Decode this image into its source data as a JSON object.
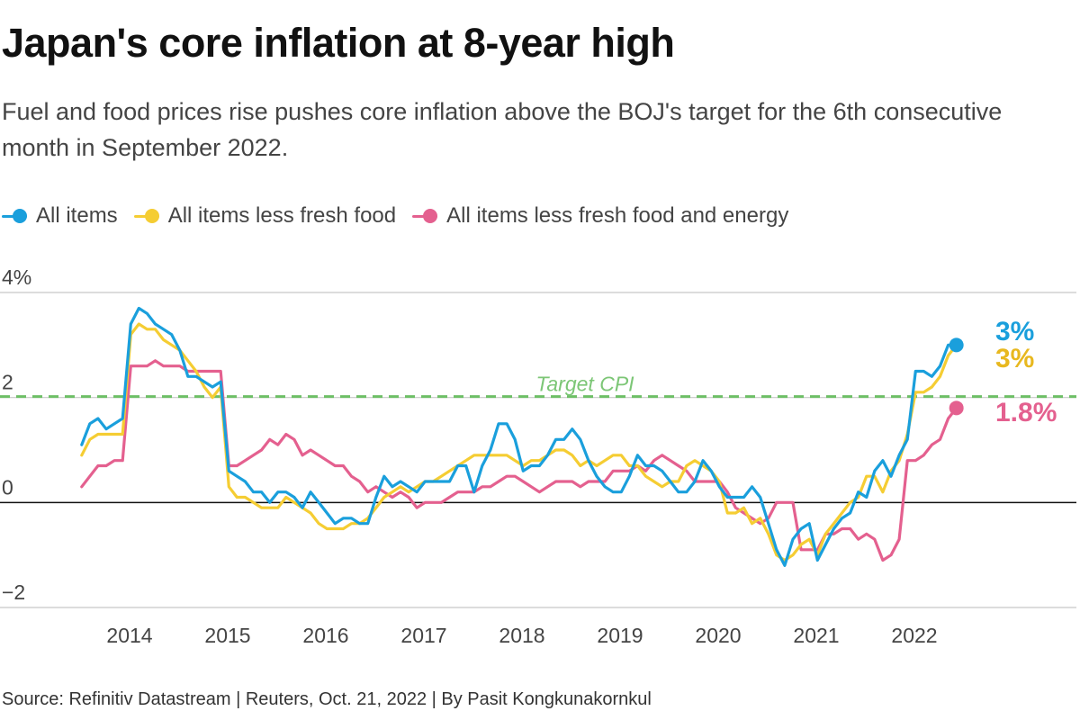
{
  "title": "Japan's core inflation at 8-year high",
  "subtitle": "Fuel and food prices rise pushes core inflation above the BOJ's target for the 6th consecutive month in September 2022.",
  "source": "Source: Refinitiv Datastream | Reuters, Oct. 21, 2022 | By Pasit Kongkunakornkul",
  "legend": [
    {
      "label": "All items",
      "color": "#1a9fdc"
    },
    {
      "label": "All items less fresh food",
      "color": "#f5cd33"
    },
    {
      "label": "All items less fresh food and energy",
      "color": "#e4608f"
    }
  ],
  "chart_data": {
    "type": "line",
    "title": "Japan's core inflation at 8-year high",
    "subtitle": "Fuel and food prices rise pushes core inflation above the BOJ's target for the 6th consecutive month in September 2022.",
    "xlabel": "",
    "ylabel": "",
    "ylim": [
      -2,
      4
    ],
    "y_ticks": [
      {
        "value": 4,
        "label": "4%"
      },
      {
        "value": 2,
        "label": "2"
      },
      {
        "value": 0,
        "label": "0"
      },
      {
        "value": -2,
        "label": "−2"
      }
    ],
    "x_ticks": [
      "2014",
      "2015",
      "2016",
      "2017",
      "2018",
      "2019",
      "2020",
      "2021",
      "2022"
    ],
    "x_start": "2013-10",
    "x_end": "2022-09",
    "grid": "horizontal",
    "legend_position": "top-left",
    "reference_line": {
      "label": "Target CPI",
      "value": 2,
      "color": "#6dbf66"
    },
    "end_labels": [
      {
        "series": "All items",
        "text": "3%"
      },
      {
        "series": "All items less fresh food",
        "text": "3%"
      },
      {
        "series": "All items less fresh food and energy",
        "text": "1.8%"
      }
    ],
    "series": [
      {
        "name": "All items",
        "color": "#1a9fdc",
        "values": [
          1.1,
          1.5,
          1.6,
          1.4,
          1.5,
          1.6,
          3.4,
          3.7,
          3.6,
          3.4,
          3.3,
          3.2,
          2.9,
          2.4,
          2.4,
          2.3,
          2.2,
          2.3,
          0.6,
          0.5,
          0.4,
          0.2,
          0.2,
          0.0,
          0.2,
          0.2,
          0.1,
          -0.1,
          0.2,
          0.0,
          -0.2,
          -0.4,
          -0.3,
          -0.3,
          -0.4,
          -0.4,
          0.1,
          0.5,
          0.3,
          0.4,
          0.3,
          0.2,
          0.4,
          0.4,
          0.4,
          0.4,
          0.7,
          0.7,
          0.2,
          0.7,
          1.0,
          1.5,
          1.5,
          1.2,
          0.6,
          0.7,
          0.7,
          0.9,
          1.2,
          1.2,
          1.4,
          1.2,
          0.8,
          0.5,
          0.3,
          0.2,
          0.2,
          0.5,
          0.9,
          0.7,
          0.7,
          0.6,
          0.4,
          0.2,
          0.2,
          0.4,
          0.8,
          0.6,
          0.3,
          0.1,
          0.1,
          0.1,
          0.3,
          0.1,
          -0.4,
          -0.9,
          -1.2,
          -0.7,
          -0.5,
          -0.4,
          -1.1,
          -0.8,
          -0.5,
          -0.3,
          -0.2,
          0.2,
          0.1,
          0.6,
          0.8,
          0.5,
          0.9,
          1.2,
          2.5,
          2.5,
          2.4,
          2.6,
          3.0,
          3.0
        ]
      },
      {
        "name": "All items less fresh food",
        "color": "#f5cd33",
        "values": [
          0.9,
          1.2,
          1.3,
          1.3,
          1.3,
          1.3,
          3.2,
          3.4,
          3.3,
          3.3,
          3.1,
          3.0,
          2.9,
          2.7,
          2.5,
          2.2,
          2.0,
          2.2,
          0.3,
          0.1,
          0.1,
          0.0,
          -0.1,
          -0.1,
          -0.1,
          0.1,
          0.0,
          -0.1,
          -0.2,
          -0.4,
          -0.5,
          -0.5,
          -0.5,
          -0.4,
          -0.4,
          -0.3,
          -0.1,
          0.1,
          0.2,
          0.3,
          0.2,
          0.3,
          0.4,
          0.4,
          0.5,
          0.6,
          0.7,
          0.8,
          0.9,
          0.9,
          0.9,
          0.9,
          0.9,
          0.8,
          0.7,
          0.8,
          0.8,
          0.9,
          1.0,
          1.0,
          0.9,
          0.7,
          0.8,
          0.7,
          0.8,
          0.9,
          0.9,
          0.7,
          0.7,
          0.5,
          0.4,
          0.3,
          0.4,
          0.4,
          0.7,
          0.8,
          0.7,
          0.6,
          0.4,
          -0.2,
          -0.2,
          -0.1,
          -0.4,
          -0.3,
          -0.6,
          -1.0,
          -1.1,
          -1.0,
          -0.8,
          -0.7,
          -1.0,
          -0.6,
          -0.4,
          -0.2,
          0.0,
          0.1,
          0.5,
          0.5,
          0.2,
          0.6,
          0.8,
          1.3,
          2.1,
          2.1,
          2.2,
          2.4,
          2.8,
          3.0
        ]
      },
      {
        "name": "All items less fresh food and energy",
        "color": "#e4608f",
        "values": [
          0.3,
          0.5,
          0.7,
          0.7,
          0.8,
          0.8,
          2.6,
          2.6,
          2.6,
          2.7,
          2.6,
          2.6,
          2.6,
          2.5,
          2.5,
          2.5,
          2.5,
          2.5,
          0.7,
          0.7,
          0.8,
          0.9,
          1.0,
          1.2,
          1.1,
          1.3,
          1.2,
          0.9,
          1.0,
          0.9,
          0.8,
          0.7,
          0.7,
          0.5,
          0.4,
          0.2,
          0.3,
          0.2,
          0.1,
          0.2,
          0.1,
          -0.1,
          0.0,
          0.0,
          0.0,
          0.1,
          0.2,
          0.2,
          0.2,
          0.3,
          0.3,
          0.4,
          0.5,
          0.5,
          0.4,
          0.3,
          0.2,
          0.3,
          0.4,
          0.4,
          0.4,
          0.3,
          0.4,
          0.4,
          0.4,
          0.6,
          0.6,
          0.6,
          0.7,
          0.6,
          0.8,
          0.9,
          0.8,
          0.7,
          0.6,
          0.4,
          0.4,
          0.4,
          0.4,
          0.2,
          -0.1,
          -0.2,
          -0.3,
          -0.4,
          -0.3,
          0.0,
          0.0,
          0.0,
          -0.9,
          -0.9,
          -0.9,
          -0.6,
          -0.6,
          -0.5,
          -0.5,
          -0.7,
          -0.6,
          -0.7,
          -1.1,
          -1.0,
          -0.7,
          0.8,
          0.8,
          0.9,
          1.1,
          1.2,
          1.6,
          1.8
        ]
      }
    ]
  }
}
